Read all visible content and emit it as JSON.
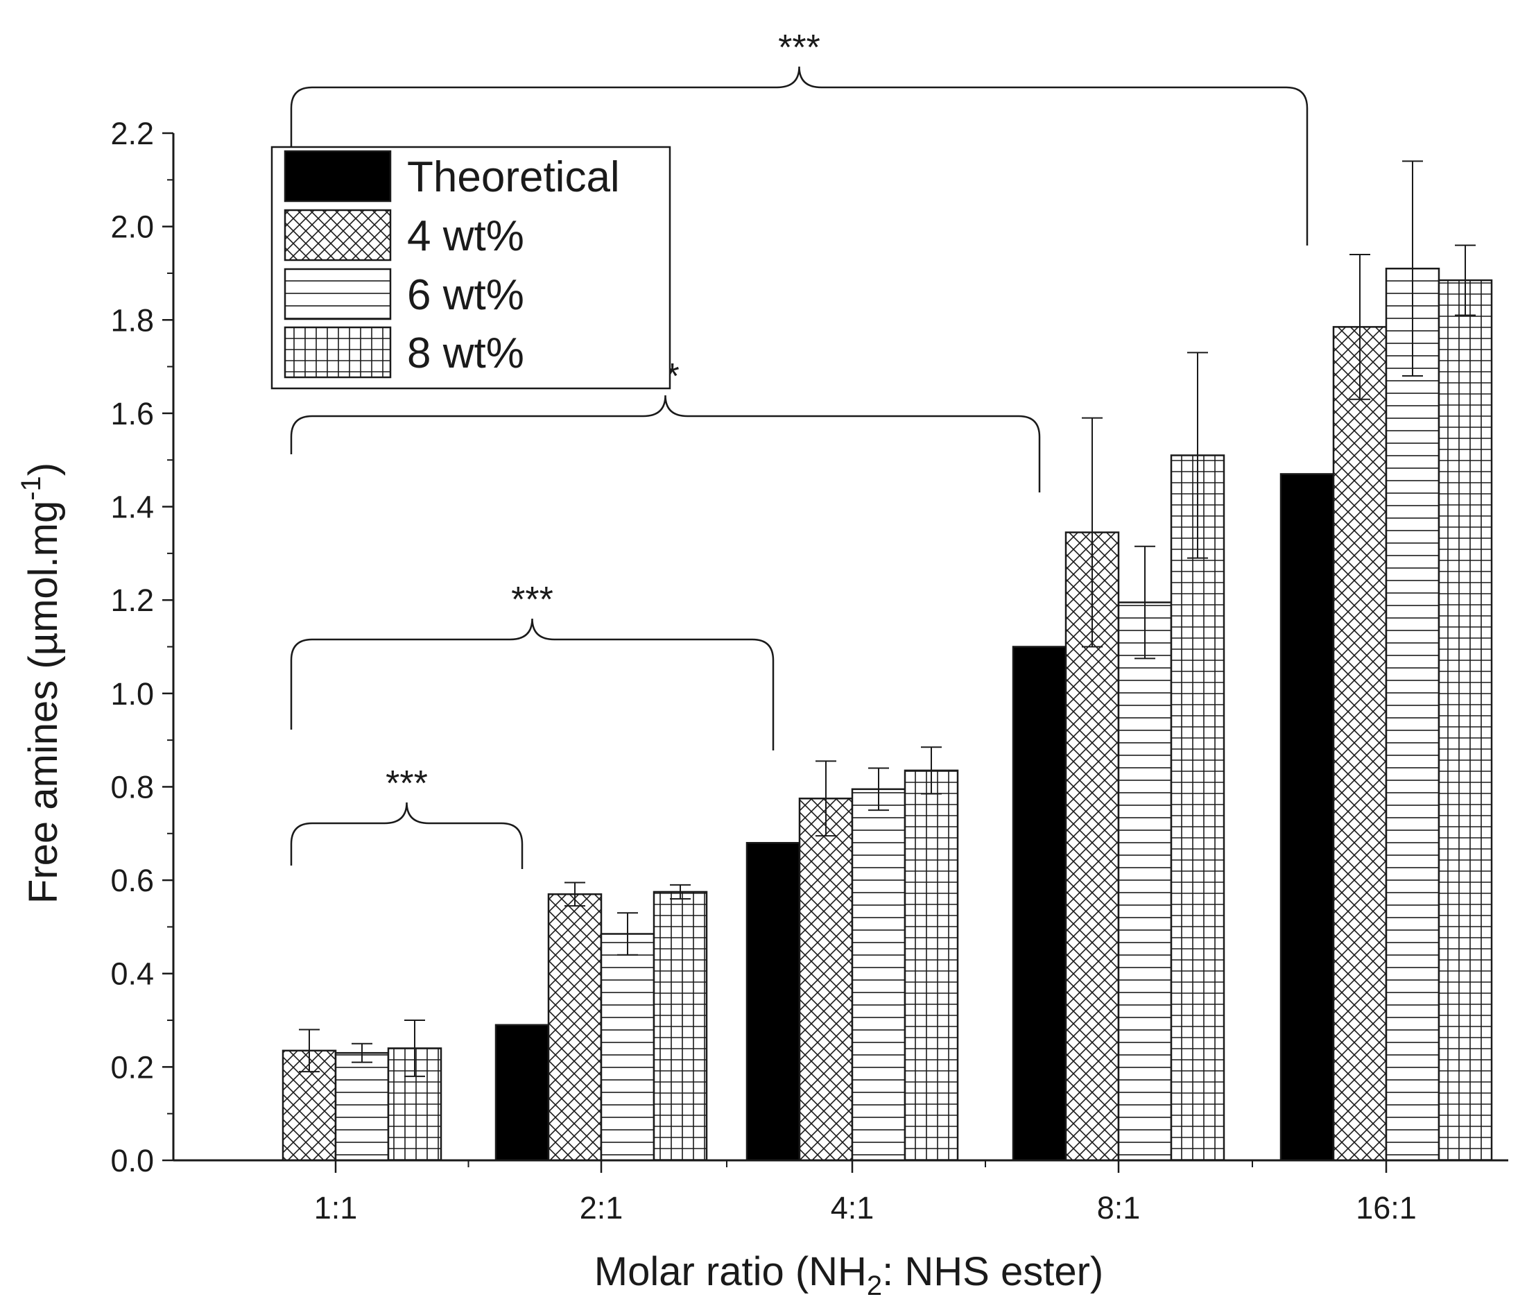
{
  "chart_data": {
    "type": "bar",
    "title": "",
    "xlabel_prefix": "Molar ratio (NH",
    "xlabel_sub": "2",
    "xlabel_suffix": ": NHS ester)",
    "ylabel_prefix": "Free amines (µmol.mg",
    "ylabel_sup": "-1",
    "ylabel_suffix": ")",
    "ylim": [
      0,
      2.2
    ],
    "yticks": [
      "0.0",
      "0.2",
      "0.4",
      "0.6",
      "0.8",
      "1.0",
      "1.2",
      "1.4",
      "1.6",
      "1.8",
      "2.0",
      "2.2"
    ],
    "categories": [
      "1:1",
      "2:1",
      "4:1",
      "8:1",
      "16:1"
    ],
    "legend_position": "top-left",
    "series": [
      {
        "name": "Theoretical",
        "pattern": "solid",
        "values": [
          0.0,
          0.29,
          0.68,
          1.1,
          1.47
        ],
        "errors": [
          null,
          null,
          null,
          null,
          null
        ]
      },
      {
        "name": "4 wt%",
        "pattern": "crosshatch",
        "values": [
          0.235,
          0.57,
          0.775,
          1.345,
          1.785
        ],
        "errors": [
          0.045,
          0.025,
          0.08,
          0.245,
          0.155
        ]
      },
      {
        "name": "6 wt%",
        "pattern": "horizontal",
        "values": [
          0.23,
          0.485,
          0.795,
          1.195,
          1.91
        ],
        "errors": [
          0.02,
          0.045,
          0.045,
          0.12,
          0.23
        ]
      },
      {
        "name": "8 wt%",
        "pattern": "grid",
        "values": [
          0.24,
          0.575,
          0.835,
          1.51,
          1.885
        ],
        "errors": [
          0.06,
          0.015,
          0.05,
          0.22,
          0.075
        ]
      }
    ],
    "significance": [
      {
        "from": "1:1",
        "to": "2:1",
        "label": "***"
      },
      {
        "from": "1:1",
        "to": "4:1",
        "label": "***"
      },
      {
        "from": "1:1",
        "to": "8:1",
        "label": "**"
      },
      {
        "from": "1:1",
        "to": "16:1",
        "label": "***"
      }
    ],
    "colors": {
      "axis": "#1a1a1a",
      "bar_fill": "#ffffff",
      "solid_fill": "#000000"
    }
  }
}
